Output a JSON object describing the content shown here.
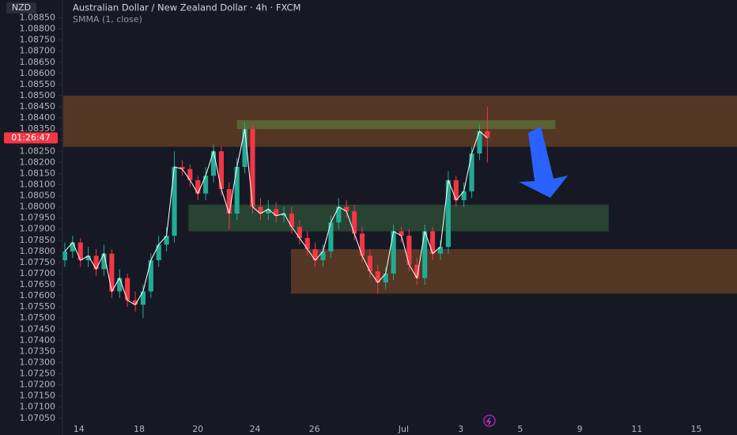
{
  "header": {
    "title": "Australian Dollar / New Zealand Dollar · 4h · FXCM",
    "indicator": "SMMA (1, close)"
  },
  "chart_data": {
    "type": "candlestick",
    "currency": "NZD",
    "countdown": "01:26:47",
    "current_price": 1.0831,
    "up_color": "#22ab94",
    "down_color": "#f23645",
    "indicator_color": "#ffffff",
    "x": [
      0,
      1,
      2,
      3,
      4,
      5,
      6,
      7,
      8,
      9,
      10,
      11,
      12,
      13,
      14,
      15,
      16,
      17,
      18,
      19,
      20,
      21,
      22,
      23,
      24,
      25,
      26,
      27,
      28,
      29,
      30,
      31,
      32,
      33,
      34,
      35,
      36,
      37,
      38,
      39,
      40,
      41,
      42,
      43,
      44,
      45,
      46,
      47,
      48,
      49,
      50,
      51,
      52,
      53,
      54
    ],
    "open": [
      1.0776,
      1.078,
      1.0784,
      1.0776,
      1.0778,
      1.0772,
      1.0779,
      1.0762,
      1.0768,
      1.0758,
      1.0756,
      1.0762,
      1.0776,
      1.0783,
      1.0787,
      1.0818,
      1.0817,
      1.0812,
      1.0806,
      1.0814,
      1.0825,
      1.0808,
      1.0797,
      1.0818,
      1.0835,
      1.08,
      1.0797,
      1.0799,
      1.0796,
      1.0797,
      1.0791,
      1.0786,
      1.0781,
      1.0776,
      1.078,
      1.0793,
      1.08,
      1.0798,
      1.0788,
      1.0778,
      1.0771,
      1.0766,
      1.077,
      1.0789,
      1.0787,
      1.0774,
      1.0768,
      1.0789,
      1.0779,
      1.0782,
      1.0812,
      1.0803,
      1.0807,
      1.0824,
      1.0834
    ],
    "high": [
      1.0784,
      1.0787,
      1.0786,
      1.0782,
      1.0781,
      1.0783,
      1.0781,
      1.0772,
      1.077,
      1.0762,
      1.0765,
      1.0779,
      1.0787,
      1.0791,
      1.0825,
      1.0821,
      1.0819,
      1.0814,
      1.0818,
      1.0828,
      1.0827,
      1.0811,
      1.0822,
      1.0838,
      1.0837,
      1.0804,
      1.0803,
      1.0802,
      1.08,
      1.08,
      1.0794,
      1.0789,
      1.0784,
      1.0783,
      1.0796,
      1.0804,
      1.0803,
      1.0801,
      1.0791,
      1.0781,
      1.0774,
      1.0773,
      1.0792,
      1.0791,
      1.079,
      1.0777,
      1.0792,
      1.0791,
      1.0785,
      1.0816,
      1.0814,
      1.0811,
      1.0827,
      1.0837,
      1.0845
    ],
    "low": [
      1.0773,
      1.0777,
      1.0773,
      1.0773,
      1.0769,
      1.0769,
      1.0759,
      1.0759,
      1.0755,
      1.0753,
      1.075,
      1.0759,
      1.0773,
      1.078,
      1.0784,
      1.0814,
      1.0809,
      1.0803,
      1.0803,
      1.0811,
      1.0805,
      1.079,
      1.0794,
      1.0815,
      1.0797,
      1.0794,
      1.0794,
      1.0793,
      1.0793,
      1.0788,
      1.0783,
      1.0778,
      1.0773,
      1.0773,
      1.0777,
      1.079,
      1.0795,
      1.0785,
      1.0775,
      1.0768,
      1.0761,
      1.0763,
      1.0767,
      1.0784,
      1.0771,
      1.0765,
      1.0765,
      1.0776,
      1.0776,
      1.0779,
      1.08,
      1.08,
      1.0804,
      1.0821,
      1.082
    ],
    "close": [
      1.078,
      1.0784,
      1.0776,
      1.0778,
      1.0772,
      1.0779,
      1.0762,
      1.0768,
      1.0758,
      1.0756,
      1.0762,
      1.0776,
      1.0783,
      1.0787,
      1.0818,
      1.0817,
      1.0812,
      1.0806,
      1.0814,
      1.0825,
      1.0808,
      1.0797,
      1.0818,
      1.0835,
      1.08,
      1.0797,
      1.0799,
      1.0796,
      1.0797,
      1.0791,
      1.0786,
      1.0781,
      1.0776,
      1.078,
      1.0793,
      1.08,
      1.0798,
      1.0788,
      1.0778,
      1.0771,
      1.0766,
      1.077,
      1.0789,
      1.0787,
      1.0774,
      1.0768,
      1.0789,
      1.0779,
      1.0782,
      1.0812,
      1.0803,
      1.0807,
      1.0824,
      1.0834,
      1.0831
    ],
    "xlim": [
      -0.2,
      85.9
    ],
    "xticks": [
      {
        "value": 1.8,
        "label": "14"
      },
      {
        "value": 9.5,
        "label": "18"
      },
      {
        "value": 17.0,
        "label": "20"
      },
      {
        "value": 24.3,
        "label": "24"
      },
      {
        "value": 31.9,
        "label": "26"
      },
      {
        "value": 43.3,
        "label": "Jul"
      },
      {
        "value": 50.6,
        "label": "3"
      },
      {
        "value": 58.2,
        "label": "5"
      },
      {
        "value": 65.8,
        "label": "9"
      },
      {
        "value": 73.1,
        "label": "11"
      },
      {
        "value": 80.7,
        "label": "15"
      }
    ],
    "ylim": [
      1.0701,
      1.0893
    ],
    "yticks": [
      {
        "value": 1.0705,
        "label": "1.07050"
      },
      {
        "value": 1.071,
        "label": "1.07100"
      },
      {
        "value": 1.0715,
        "label": "1.07150"
      },
      {
        "value": 1.072,
        "label": "1.07200"
      },
      {
        "value": 1.0725,
        "label": "1.07250"
      },
      {
        "value": 1.073,
        "label": "1.07300"
      },
      {
        "value": 1.0735,
        "label": "1.07350"
      },
      {
        "value": 1.074,
        "label": "1.07400"
      },
      {
        "value": 1.0745,
        "label": "1.07450"
      },
      {
        "value": 1.075,
        "label": "1.07500"
      },
      {
        "value": 1.0755,
        "label": "1.07550"
      },
      {
        "value": 1.076,
        "label": "1.07600"
      },
      {
        "value": 1.0765,
        "label": "1.07650"
      },
      {
        "value": 1.077,
        "label": "1.07700"
      },
      {
        "value": 1.0775,
        "label": "1.07750"
      },
      {
        "value": 1.078,
        "label": "1.07800"
      },
      {
        "value": 1.0785,
        "label": "1.07850"
      },
      {
        "value": 1.079,
        "label": "1.07900"
      },
      {
        "value": 1.0795,
        "label": "1.07950"
      },
      {
        "value": 1.08,
        "label": "1.08000"
      },
      {
        "value": 1.0805,
        "label": "1.08050"
      },
      {
        "value": 1.081,
        "label": "1.08100"
      },
      {
        "value": 1.0815,
        "label": "1.08150"
      },
      {
        "value": 1.082,
        "label": "1.08200"
      },
      {
        "value": 1.0825,
        "label": "1.08250"
      },
      {
        "value": 1.083,
        "label": "1.08300"
      },
      {
        "value": 1.0835,
        "label": "1.08350"
      },
      {
        "value": 1.084,
        "label": "1.08400"
      },
      {
        "value": 1.0845,
        "label": "1.08450"
      },
      {
        "value": 1.085,
        "label": "1.08500"
      },
      {
        "value": 1.0855,
        "label": "1.08550"
      },
      {
        "value": 1.086,
        "label": "1.08600"
      },
      {
        "value": 1.0865,
        "label": "1.08650"
      },
      {
        "value": 1.087,
        "label": "1.08700"
      },
      {
        "value": 1.0875,
        "label": "1.08750"
      },
      {
        "value": 1.088,
        "label": "1.08800"
      },
      {
        "value": 1.0885,
        "label": "1.08850"
      }
    ],
    "zones": [
      {
        "x": [
          -0.2,
          85.9
        ],
        "y": [
          1.0827,
          1.085
        ],
        "color": "#5e3c24"
      },
      {
        "x": [
          15.8,
          69.5
        ],
        "y": [
          1.0789,
          1.0801
        ],
        "color": "#2c4b35"
      },
      {
        "x": [
          28.9,
          85.9
        ],
        "y": [
          1.0761,
          1.0781
        ],
        "color": "#5e3c24"
      },
      {
        "x": [
          22.0,
          62.7
        ],
        "y": [
          1.0835,
          1.0839
        ],
        "color": "#5d6a36"
      }
    ]
  }
}
